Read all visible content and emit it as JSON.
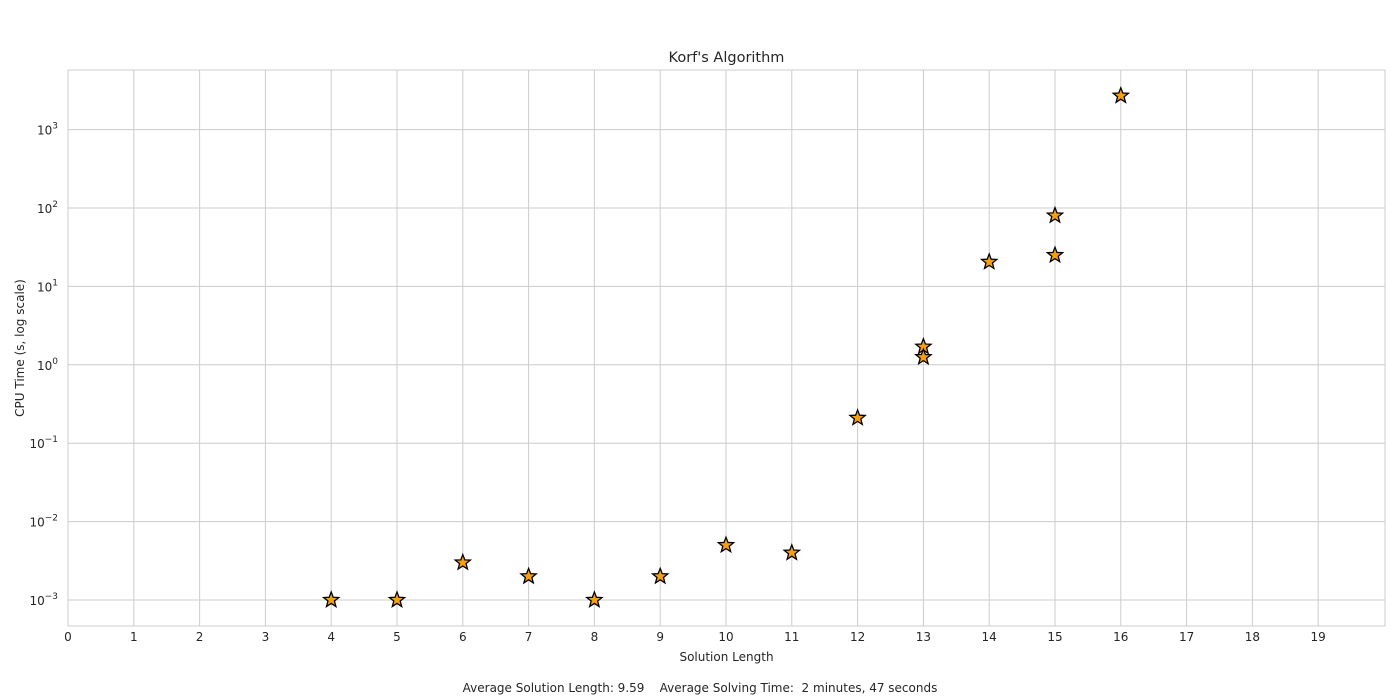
{
  "chart_data": {
    "type": "scatter",
    "title": "Korf's Algorithm",
    "xlabel": "Solution Length",
    "ylabel": "CPU Time (s, log scale)",
    "xlim": [
      0,
      20
    ],
    "ylim": [
      0.0005,
      6000
    ],
    "y_scale": "log",
    "grid": true,
    "x_ticks": [
      0,
      1,
      2,
      3,
      4,
      5,
      6,
      7,
      8,
      9,
      10,
      11,
      12,
      13,
      14,
      15,
      16,
      17,
      18,
      19
    ],
    "y_ticks": [
      {
        "value": 0.001,
        "base": "10",
        "exp": "−3"
      },
      {
        "value": 0.01,
        "base": "10",
        "exp": "−2"
      },
      {
        "value": 0.1,
        "base": "10",
        "exp": "−1"
      },
      {
        "value": 1,
        "base": "10",
        "exp": "0"
      },
      {
        "value": 10,
        "base": "10",
        "exp": "1"
      },
      {
        "value": 100,
        "base": "10",
        "exp": "2"
      },
      {
        "value": 1000,
        "base": "10",
        "exp": "3"
      }
    ],
    "marker": "star",
    "marker_color": "#f5a013",
    "marker_edge_color": "#000000",
    "points": [
      {
        "x": 4,
        "y": 0.001
      },
      {
        "x": 5,
        "y": 0.001
      },
      {
        "x": 6,
        "y": 0.003
      },
      {
        "x": 7,
        "y": 0.002
      },
      {
        "x": 8,
        "y": 0.001
      },
      {
        "x": 9,
        "y": 0.002
      },
      {
        "x": 10,
        "y": 0.005
      },
      {
        "x": 11,
        "y": 0.004
      },
      {
        "x": 12,
        "y": 0.21
      },
      {
        "x": 13,
        "y": 1.7
      },
      {
        "x": 13,
        "y": 1.25
      },
      {
        "x": 14,
        "y": 20.5
      },
      {
        "x": 15,
        "y": 80
      },
      {
        "x": 15,
        "y": 25
      },
      {
        "x": 16,
        "y": 2700
      }
    ]
  },
  "footer": {
    "text": "Average Solution Length: 9.59    Average Solving Time:  2 minutes, 47 seconds"
  }
}
